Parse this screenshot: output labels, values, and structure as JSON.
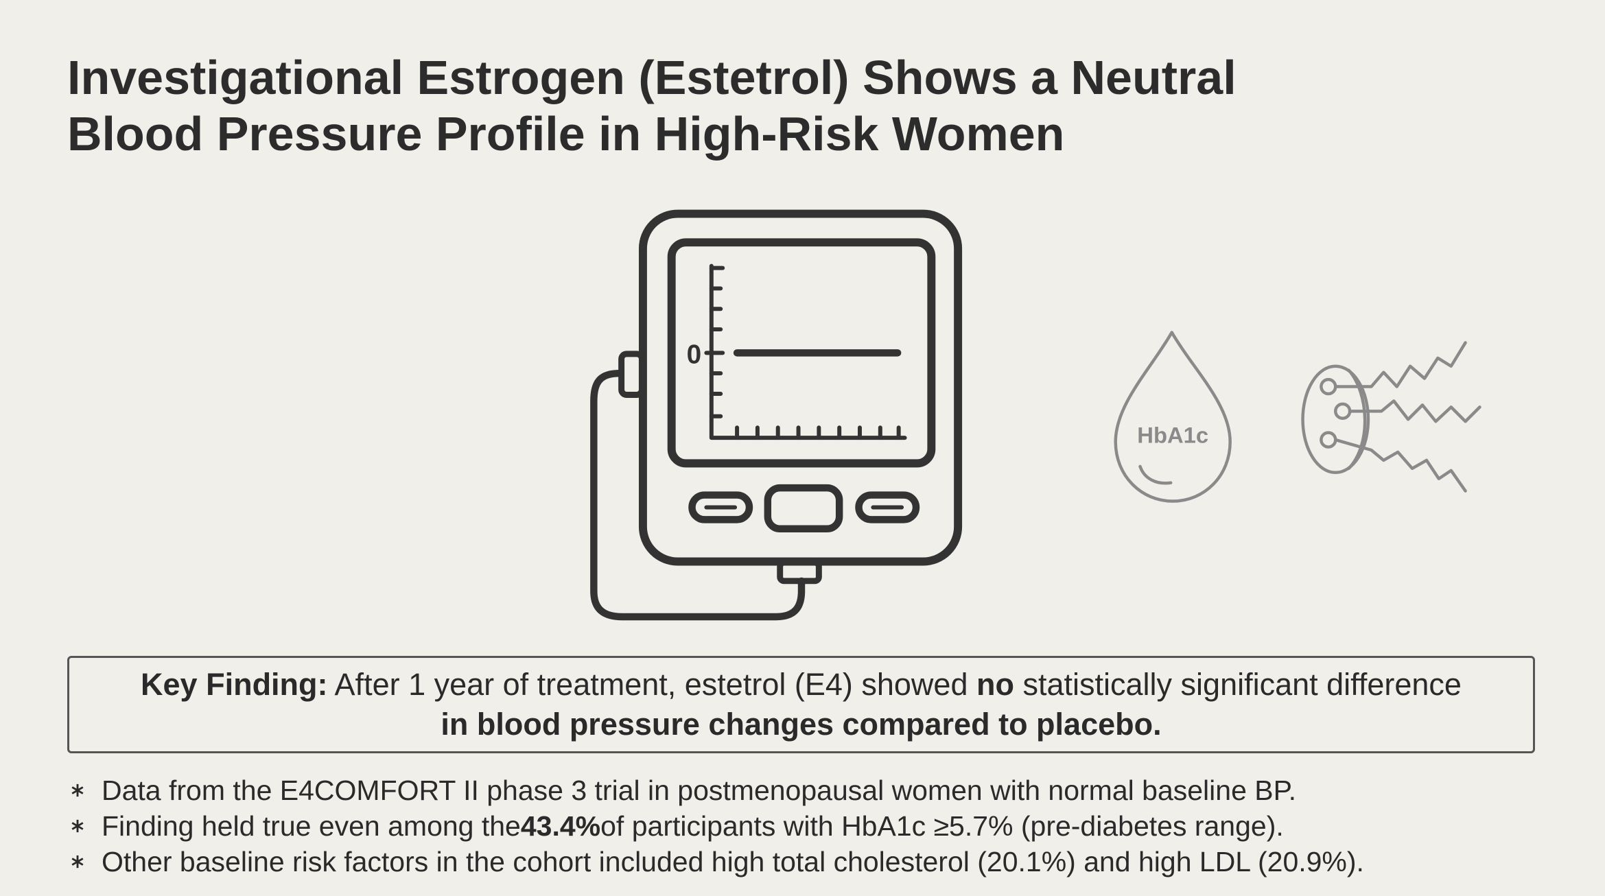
{
  "title": {
    "line1": "Investigational Estrogen (Estetrol) Shows a Neutral",
    "line2": "Blood Pressure Profile in High-Risk Women"
  },
  "icons": {
    "monitor_zero": "0",
    "drop_label": "HbA1c"
  },
  "key_finding": {
    "label": "Key Finding:",
    "text1": "After 1 year of treatment, estetrol (E4) showed",
    "bold1": "no",
    "text2": "statistically significant difference",
    "bold2": "in blood pressure changes compared to placebo."
  },
  "bullets": [
    {
      "text": "Data from the E4COMFORT II phase 3 trial in postmenopausal women with normal baseline BP."
    },
    {
      "before": "Finding held true even among the",
      "bold": "43.4%",
      "after": "of participants with HbA1c ≥5.7% (pre-diabetes range)."
    },
    {
      "text": "Other baseline risk factors in the cohort included high total cholesterol (20.1%) and high LDL (20.9%)."
    }
  ]
}
